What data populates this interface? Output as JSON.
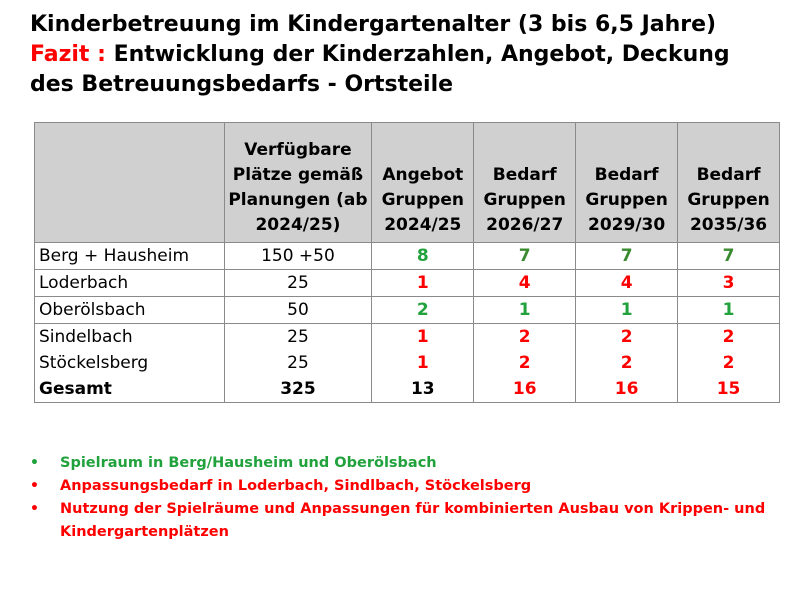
{
  "title": {
    "line1": "Kinderbetreuung im Kindergartenalter (3 bis 6,5 Jahre)",
    "fazit_label": "Fazit :",
    "line2_rest": " Entwicklung der Kinderzahlen, Angebot, Deckung",
    "line3": "des Betreuungsbedarfs - Ortsteile"
  },
  "table": {
    "headers": [
      "",
      "Verfügbare Plätze gemäß Planungen (ab 2024/25)",
      "Angebot Gruppen 2024/25",
      "Bedarf Gruppen 2026/27",
      "Bedarf Gruppen 2029/30",
      "Bedarf Gruppen 2035/36"
    ],
    "rows": [
      {
        "name": "Berg + Hausheim",
        "plaetze": "150 +50",
        "angebot": "8",
        "b2627": "7",
        "b2930": "7",
        "b3536": "7"
      },
      {
        "name": "Loderbach",
        "plaetze": "25",
        "angebot": "1",
        "b2627": "4",
        "b2930": "4",
        "b3536": "3"
      },
      {
        "name": "Oberölsbach",
        "plaetze": "50",
        "angebot": "2",
        "b2627": "1",
        "b2930": "1",
        "b3536": "1"
      },
      {
        "name": "Sindelbach",
        "plaetze": "25",
        "angebot": "1",
        "b2627": "2",
        "b2930": "2",
        "b3536": "2"
      },
      {
        "name": "Stöckelsberg",
        "plaetze": "25",
        "angebot": "1",
        "b2627": "2",
        "b2930": "2",
        "b3536": "2"
      },
      {
        "name": "Gesamt",
        "plaetze": "325",
        "angebot": "13",
        "b2627": "16",
        "b2930": "16",
        "b3536": "15"
      }
    ]
  },
  "bullets": [
    {
      "text": "Spielraum in Berg/Hausheim und Oberölsbach",
      "color": "#21a23c"
    },
    {
      "text": "Anpassungsbedarf in Loderbach, Sindlbach, Stöckelsberg",
      "color": "#ff0000"
    },
    {
      "text": "Nutzung der Spielräume und Anpassungen für kombinierten Ausbau von Krippen- und Kindergartenplätzen",
      "color": "#ff0000"
    }
  ],
  "colors": {
    "green": "#21a23c",
    "dark_green": "#3a8a2f",
    "red": "#ff0000",
    "header_bg": "#d0d0d0"
  }
}
